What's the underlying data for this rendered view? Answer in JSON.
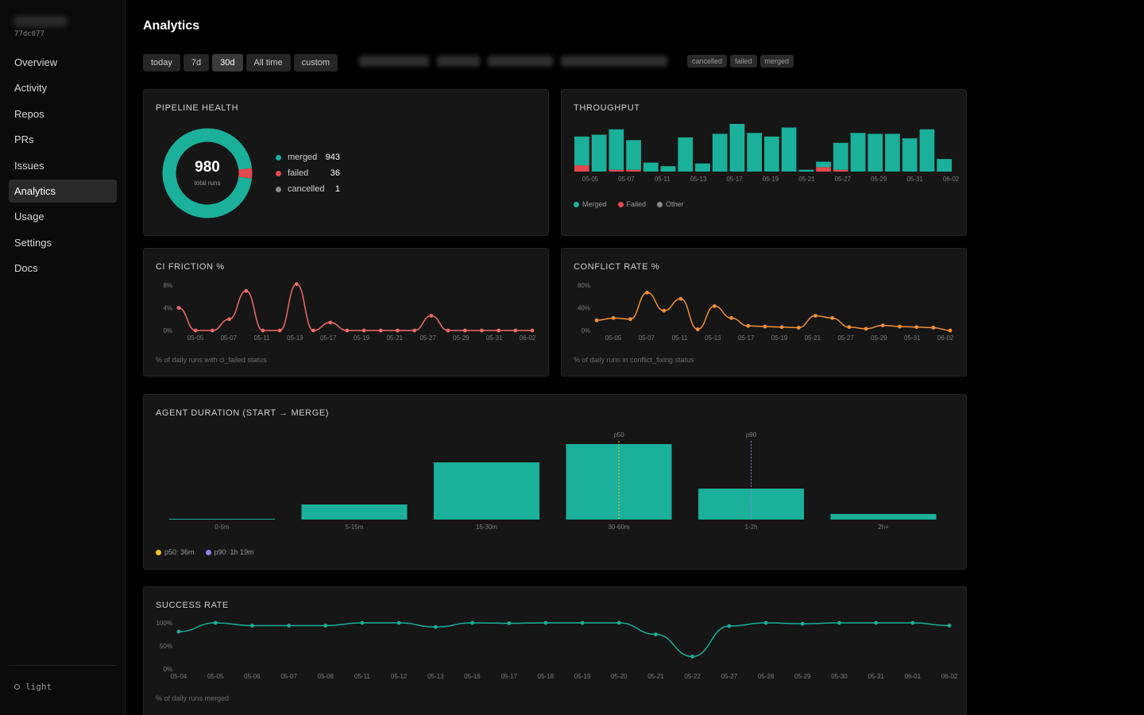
{
  "sidebar": {
    "hash": "77dc077",
    "items": [
      {
        "label": "Overview",
        "active": false
      },
      {
        "label": "Activity",
        "active": false
      },
      {
        "label": "Repos",
        "active": false
      },
      {
        "label": "PRs",
        "active": false
      },
      {
        "label": "Issues",
        "active": false
      },
      {
        "label": "Analytics",
        "active": true
      },
      {
        "label": "Usage",
        "active": false
      },
      {
        "label": "Settings",
        "active": false
      },
      {
        "label": "Docs",
        "active": false
      }
    ],
    "theme_label": "light"
  },
  "header": {
    "title": "Analytics",
    "ranges": [
      "today",
      "7d",
      "30d",
      "All time",
      "custom"
    ],
    "active_range": "30d",
    "status_filters": [
      "cancelled",
      "failed",
      "merged"
    ]
  },
  "colors": {
    "teal": "#1ab09a",
    "red": "#e5484d",
    "orange": "#f0913a",
    "salmon": "#ef6a6a",
    "grey": "#8a8a8a",
    "yellow": "#f5c518",
    "purple": "#9b7cf0"
  },
  "pipeline_health": {
    "title": "PIPELINE HEALTH",
    "total": "980",
    "total_label": "total runs",
    "rows": [
      {
        "label": "merged",
        "value": "943",
        "color": "#1ab09a"
      },
      {
        "label": "failed",
        "value": "36",
        "color": "#e5484d"
      },
      {
        "label": "cancelled",
        "value": "1",
        "color": "#8a8a8a"
      }
    ]
  },
  "throughput": {
    "title": "THROUGHPUT",
    "legend": [
      {
        "label": "Merged",
        "color": "#1ab09a"
      },
      {
        "label": "Failed",
        "color": "#e5484d"
      },
      {
        "label": "Other",
        "color": "#8a8a8a"
      }
    ]
  },
  "ci_friction": {
    "title": "CI FRICTION %",
    "note": "% of daily runs with ci_failed status"
  },
  "conflict_rate": {
    "title": "CONFLICT RATE %",
    "note": "% of daily runs in conflict_fixing status"
  },
  "agent_duration": {
    "title": "AGENT DURATION (START → MERGE)",
    "p50_tag": "p50",
    "p90_tag": "p90",
    "legend_p50": "p50: 36m",
    "legend_p90": "p90: 1h 19m"
  },
  "success_rate": {
    "title": "SUCCESS RATE",
    "note": "% of daily runs merged"
  },
  "chart_data": [
    {
      "id": "pipeline_health",
      "type": "pie",
      "labels": [
        "merged",
        "failed",
        "cancelled"
      ],
      "values": [
        943,
        36,
        1
      ],
      "colors": [
        "#1ab09a",
        "#e5484d",
        "#8a8a8a"
      ]
    },
    {
      "id": "throughput",
      "type": "bar",
      "stacked": true,
      "categories": [
        "05-04",
        "05-05",
        "05-06",
        "05-07",
        "05-08",
        "05-11",
        "05-12",
        "05-13",
        "05-16",
        "05-17",
        "05-18",
        "05-19",
        "05-20",
        "05-21",
        "05-22",
        "05-27",
        "05-28",
        "05-29",
        "05-30",
        "05-31",
        "06-01",
        "06-02"
      ],
      "x_tick_labels": [
        "05-05",
        "05-07",
        "05-11",
        "05-13",
        "05-17",
        "05-19",
        "05-21",
        "05-27",
        "05-29",
        "05-31",
        "06-02"
      ],
      "series": [
        {
          "name": "Merged",
          "values": [
            32,
            41,
            45,
            33,
            10,
            6,
            38,
            9,
            42,
            53,
            43,
            39,
            49,
            2,
            6,
            30,
            43,
            42,
            42,
            37,
            47,
            14
          ]
        },
        {
          "name": "Failed",
          "values": [
            7,
            0,
            2,
            2,
            0,
            0,
            0,
            0,
            0,
            0,
            0,
            0,
            0,
            0,
            5,
            2,
            0,
            0,
            0,
            0,
            0,
            0
          ]
        },
        {
          "name": "Other",
          "values": [
            0,
            0,
            0,
            0,
            0,
            0,
            0,
            0,
            0,
            0,
            0,
            0,
            0,
            0,
            0,
            0,
            0,
            0,
            0,
            0,
            0,
            0
          ]
        }
      ],
      "legend_position": "bottom-left"
    },
    {
      "id": "ci_friction",
      "type": "line",
      "x_tick_labels": [
        "05-05",
        "05-07",
        "05-11",
        "05-13",
        "05-17",
        "05-19",
        "05-21",
        "05-27",
        "05-29",
        "05-31",
        "06-02"
      ],
      "yticks": [
        "8%",
        "4%",
        "0%"
      ],
      "ylim": [
        0,
        8
      ],
      "values": [
        4,
        0,
        0,
        2,
        7,
        0,
        0,
        8.2,
        0,
        1.4,
        0,
        0,
        0,
        0,
        0,
        2.6,
        0,
        0,
        0,
        0,
        0,
        0
      ],
      "color": "#ef6a6a"
    },
    {
      "id": "conflict_rate",
      "type": "line",
      "x_tick_labels": [
        "05-05",
        "05-07",
        "05-11",
        "05-13",
        "05-17",
        "05-19",
        "05-21",
        "05-27",
        "05-29",
        "05-31",
        "06-02"
      ],
      "yticks": [
        "80%",
        "40%",
        "0%"
      ],
      "ylim": [
        0,
        80
      ],
      "values": [
        18,
        22,
        20,
        67,
        35,
        56,
        2,
        43,
        22,
        8,
        7,
        6,
        5,
        26,
        22,
        6,
        3,
        9,
        7,
        6,
        5,
        0
      ],
      "color": "#f0913a"
    },
    {
      "id": "agent_duration",
      "type": "bar",
      "categories": [
        "0-5m",
        "5-15m",
        "15-30m",
        "30-60m",
        "1-2h",
        "2h+"
      ],
      "values": [
        1,
        19,
        72,
        95,
        39,
        7
      ],
      "p50": "36m",
      "p90": "1h 19m",
      "color": "#1ab09a"
    },
    {
      "id": "success_rate",
      "type": "line",
      "categories": [
        "05-04",
        "05-05",
        "05-06",
        "05-07",
        "05-08",
        "05-11",
        "05-12",
        "05-13",
        "05-16",
        "05-17",
        "05-18",
        "05-19",
        "05-20",
        "05-21",
        "05-22",
        "05-27",
        "05-28",
        "05-29",
        "05-30",
        "05-31",
        "06-01",
        "06-02"
      ],
      "yticks": [
        "100%",
        "50%",
        "0%"
      ],
      "ylim": [
        0,
        100
      ],
      "values": [
        81,
        100,
        94,
        94,
        94,
        100,
        100,
        91,
        100,
        99,
        100,
        100,
        100,
        75,
        27,
        93,
        100,
        98,
        100,
        100,
        100,
        94
      ],
      "color": "#1ab09a"
    }
  ]
}
